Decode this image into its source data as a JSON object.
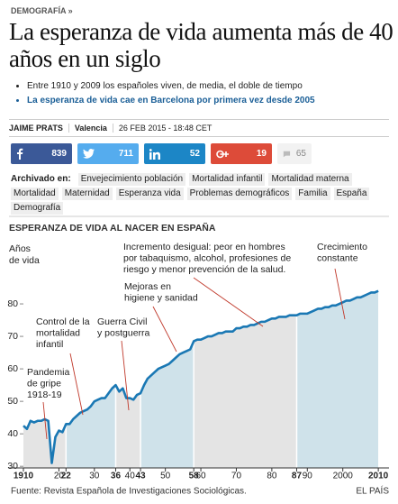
{
  "section": "DEMOGRAFÍA »",
  "headline": "La esperanza de vida aumenta más de 40 años en un siglo",
  "bullets": [
    "Entre 1910 y 2009 los españoles viven, de media, el doble de tiempo",
    "La esperanza de vida cae en Barcelona por primera vez desde 2005"
  ],
  "byline": {
    "author": "JAIME PRATS",
    "location": "Valencia",
    "date": "26 FEB 2015 - 18:48 CET"
  },
  "social": {
    "facebook": 839,
    "twitter": 711,
    "linkedin": 52,
    "googleplus": 19,
    "comments": 65
  },
  "tags_label": "Archivado en:",
  "tags": [
    "Envejecimiento población",
    "Mortalidad infantil",
    "Mortalidad materna",
    "Mortalidad",
    "Maternidad",
    "Esperanza vida",
    "Problemas demográficos",
    "Familia",
    "España",
    "Demografía"
  ],
  "chart_data": {
    "type": "line",
    "title": "ESPERANZA DE VIDA AL NACER EN ESPAÑA",
    "y_label": [
      "Años",
      "de vida"
    ],
    "x": [
      1910,
      1911,
      1912,
      1913,
      1914,
      1915,
      1916,
      1917,
      1918,
      1919,
      1920,
      1921,
      1922,
      1923,
      1924,
      1925,
      1926,
      1927,
      1928,
      1929,
      1930,
      1931,
      1932,
      1933,
      1934,
      1935,
      1936,
      1937,
      1938,
      1939,
      1940,
      1941,
      1942,
      1943,
      1944,
      1945,
      1946,
      1947,
      1948,
      1949,
      1950,
      1951,
      1952,
      1953,
      1954,
      1955,
      1956,
      1957,
      1958,
      1959,
      1960,
      1961,
      1962,
      1963,
      1964,
      1965,
      1966,
      1967,
      1968,
      1969,
      1970,
      1971,
      1972,
      1973,
      1974,
      1975,
      1976,
      1977,
      1978,
      1979,
      1980,
      1981,
      1982,
      1983,
      1984,
      1985,
      1986,
      1987,
      1988,
      1989,
      1990,
      1991,
      1992,
      1993,
      1994,
      1995,
      1996,
      1997,
      1998,
      1999,
      2000,
      2001,
      2002,
      2003,
      2004,
      2005,
      2006,
      2007,
      2008,
      2009,
      2010
    ],
    "values": [
      42.5,
      41.5,
      44,
      43.5,
      44,
      44,
      44.5,
      44,
      31,
      39,
      41,
      40.5,
      43,
      43,
      44.5,
      45.5,
      46.5,
      47,
      47.5,
      48.5,
      50,
      50.5,
      51,
      51,
      52.5,
      54,
      55,
      53,
      54,
      51,
      51,
      50.5,
      52,
      52.5,
      55,
      57,
      58,
      59,
      60,
      60.5,
      61,
      61.5,
      62.5,
      63.5,
      64.5,
      65,
      65.5,
      66,
      68.5,
      69,
      69,
      69.5,
      70,
      70,
      70.5,
      71,
      71,
      71.5,
      71.5,
      71.5,
      72.5,
      72.5,
      73,
      73,
      73.5,
      73.5,
      74,
      74.5,
      74.5,
      75,
      75.5,
      75.5,
      76,
      76,
      76,
      76.5,
      76.5,
      76.5,
      77,
      77,
      77,
      77.5,
      78,
      78.5,
      78.5,
      79,
      79,
      79.5,
      79.5,
      80,
      80.5,
      81,
      81,
      81.5,
      82,
      82,
      82.5,
      83,
      83.5,
      83.5,
      84
    ],
    "color": "#1a78b4",
    "band_colors": [
      "#e4e4e4",
      "#cfe2ea"
    ],
    "xlim": [
      1910,
      2012
    ],
    "ylim": [
      29.5,
      100
    ],
    "xticks": [
      {
        "value": 1910,
        "label": "1910",
        "bold": true
      },
      {
        "value": 1920,
        "label": "20"
      },
      {
        "value": 1922,
        "label": "22",
        "bold": true
      },
      {
        "value": 1930,
        "label": "30"
      },
      {
        "value": 1936,
        "label": "36",
        "bold": true
      },
      {
        "value": 1940,
        "label": "40"
      },
      {
        "value": 1943,
        "label": "43",
        "bold": true
      },
      {
        "value": 1950,
        "label": "50"
      },
      {
        "value": 1958,
        "label": "58",
        "bold": true
      },
      {
        "value": 1960,
        "label": "60"
      },
      {
        "value": 1970,
        "label": "70"
      },
      {
        "value": 1980,
        "label": "80"
      },
      {
        "value": 1987,
        "label": "87",
        "bold": true
      },
      {
        "value": 1990,
        "label": "90"
      },
      {
        "value": 2000,
        "label": "2000"
      },
      {
        "value": 2010,
        "label": "2010",
        "bold": true
      }
    ],
    "yticks": [
      30,
      40,
      50,
      60,
      70,
      80
    ],
    "grid": false,
    "annotations": [
      {
        "lines": [
          "Incremento desigual: peor en hombres",
          "por tabaquismo, alcohol, profesiones de",
          "riesgo y menor prevención de la salud."
        ]
      },
      {
        "lines": [
          "Crecimiento",
          "constante"
        ]
      },
      {
        "lines": [
          "Mejoras en",
          "higiene y sanidad"
        ]
      },
      {
        "lines": [
          "Control de la",
          "mortalidad",
          "infantil"
        ]
      },
      {
        "lines": [
          "Guerra Civil",
          "y postguerra"
        ]
      },
      {
        "lines": [
          "Pandemia",
          "de gripe",
          "1918-19"
        ]
      }
    ]
  },
  "source": "Fuente: Revista Española de Investigaciones Sociológicas.",
  "brand": "EL PAÍS"
}
